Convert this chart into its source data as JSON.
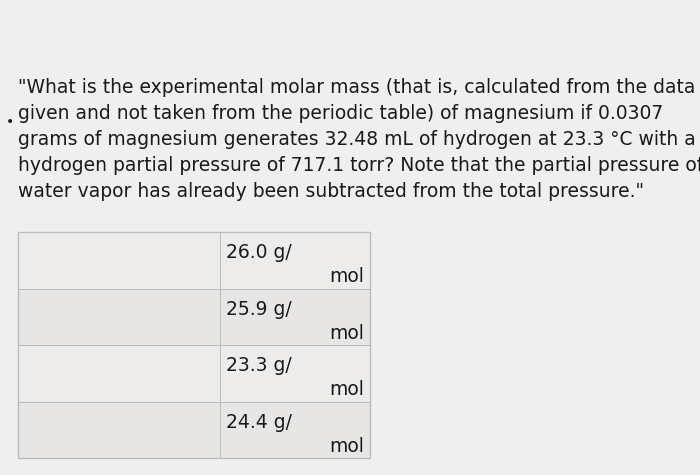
{
  "background_color": "#f0efef",
  "question_text_lines": [
    "\"What is the experimental molar mass (that is, calculated from the data",
    "given and not taken from the periodic table) of magnesium if 0.0307",
    "grams of magnesium generates 32.48 mL of hydrogen at 23.3 °C with a",
    "hydrogen partial pressure of 717.1 torr? Note that the partial pressure of",
    "water vapor has already been subtracted from the total pressure.\""
  ],
  "torr_word": "torr",
  "table_options": [
    {
      "line1": "26.0 g/",
      "line2": "mol"
    },
    {
      "line1": "25.9 g/",
      "line2": "mol"
    },
    {
      "line1": "23.3 g/",
      "line2": "mol"
    },
    {
      "line1": "24.4 g/",
      "line2": "mol"
    }
  ],
  "text_color": "#1a1a1a",
  "table_border_color": "#bbbbbb",
  "table_cell_light": "#e8e6e4",
  "table_cell_lighter": "#edecea",
  "font_size_question": 13.5,
  "font_size_table": 13.5
}
